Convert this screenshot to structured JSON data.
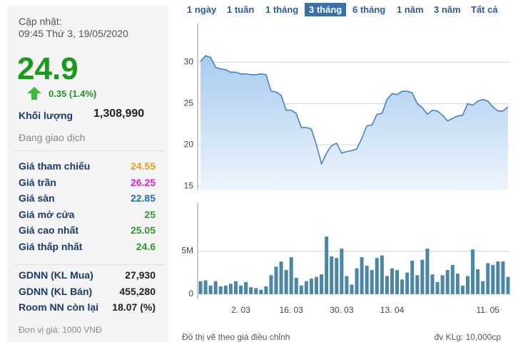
{
  "panel": {
    "updated_label": "Cập nhật:",
    "updated_time": "09:45 Thứ 3, 19/05/2020",
    "price": "24.9",
    "change": "0.35 (1.4%)",
    "volume_label": "Khối lượng",
    "volume": "1,308,990",
    "status": "Đang giao dịch",
    "prices": [
      {
        "label": "Giá tham chiếu",
        "value": "24.55",
        "color": "#f39c12"
      },
      {
        "label": "Giá trần",
        "value": "26.25",
        "color": "#e020c8"
      },
      {
        "label": "Giá sàn",
        "value": "22.85",
        "color": "#1f6fb8"
      },
      {
        "label": "Giá mở cửa",
        "value": "25",
        "color": "#2e9a2e"
      },
      {
        "label": "Giá cao nhất",
        "value": "25.05",
        "color": "#2e9a2e"
      },
      {
        "label": "Giá thấp nhất",
        "value": "24.6",
        "color": "#2e9a2e"
      }
    ],
    "foreign": [
      {
        "label": "GDNN (KL Mua)",
        "value": "27,930"
      },
      {
        "label": "GDNN (KL Bán)",
        "value": "455,280"
      },
      {
        "label": "Room NN còn lại",
        "value": "18.07 (%)"
      }
    ],
    "unit": "Đơn vị giá: 1000 VNĐ"
  },
  "tabs": {
    "items": [
      "1 ngày",
      "1 tuần",
      "1 tháng",
      "3 tháng",
      "6 tháng",
      "1 năm",
      "3 năm",
      "Tất cả"
    ],
    "selected": 3
  },
  "chart_data": [
    {
      "type": "area",
      "color": "#3a7cc4",
      "values": [
        30.1,
        30.8,
        30.6,
        29.4,
        29.2,
        29.1,
        28.8,
        28.8,
        28.6,
        28.6,
        28.5,
        28.5,
        28.6,
        28.5,
        26.5,
        26.4,
        26.0,
        24.2,
        24.2,
        23.8,
        22.1,
        22.1,
        21.9,
        20.0,
        17.7,
        19.0,
        19.9,
        20.2,
        19.0,
        19.2,
        19.3,
        19.5,
        20.8,
        22.3,
        22.4,
        23.7,
        23.8,
        25.5,
        26.2,
        26.1,
        26.5,
        26.5,
        26.3,
        25.0,
        24.5,
        23.7,
        24.2,
        24.1,
        23.6,
        22.9,
        23.2,
        23.5,
        23.6,
        25.0,
        24.8,
        25.3,
        25.5,
        25.3,
        24.6,
        24.1,
        24.1,
        24.6
      ],
      "ylim": [
        14.5,
        34.7
      ],
      "yticks": [
        15,
        20,
        25,
        30
      ],
      "grid": true
    },
    {
      "type": "bar",
      "color": "#4a86a8",
      "categories": [
        null,
        null,
        null,
        null,
        null,
        null,
        null,
        null,
        "2. 03",
        null,
        null,
        null,
        null,
        null,
        null,
        null,
        null,
        null,
        "16. 03",
        null,
        null,
        null,
        null,
        null,
        null,
        null,
        null,
        null,
        "30. 03",
        null,
        null,
        null,
        null,
        null,
        null,
        null,
        null,
        null,
        "13. 04",
        null,
        null,
        null,
        null,
        null,
        null,
        null,
        null,
        null,
        null,
        null,
        null,
        null,
        null,
        null,
        null,
        null,
        null,
        "11. 05",
        null,
        null,
        null,
        null
      ],
      "values": [
        1.5,
        1.6,
        1.0,
        1.5,
        0.9,
        1.0,
        1.2,
        1.5,
        1.0,
        1.4,
        0.8,
        0.7,
        0.5,
        0.9,
        2.2,
        3.2,
        3.8,
        2.8,
        4.3,
        1.9,
        1.0,
        1.5,
        1.8,
        2.0,
        2.3,
        6.7,
        4.4,
        4.2,
        5.3,
        2.1,
        1.1,
        3.0,
        4.3,
        3.3,
        2.8,
        4.2,
        4.5,
        2.1,
        3.0,
        2.8,
        1.7,
        2.5,
        3.9,
        2.2,
        4.0,
        5.3,
        2.3,
        1.4,
        2.2,
        2.8,
        3.4,
        2.4,
        1.0,
        2.1,
        5.2,
        2.9,
        1.5,
        3.6,
        3.4,
        3.8,
        3.8,
        2.0
      ],
      "ylim": [
        -0.6,
        10.6
      ],
      "yticks": [
        0,
        {
          "value": 5,
          "label": "5M"
        }
      ],
      "grid": true
    }
  ],
  "footer": {
    "note": "Đồ thị vẽ theo giá điều chỉnh",
    "unit": "đv KLg: 10,000cp"
  }
}
